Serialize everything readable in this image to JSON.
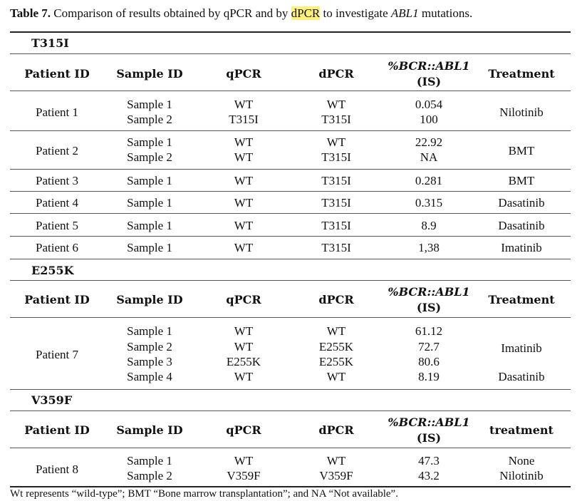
{
  "caption": {
    "label": "Table 7.",
    "text_before": " Comparison of results obtained by qPCR and by ",
    "highlight": "dPCR",
    "text_middle": " to investigate ",
    "gene": "ABL1",
    "text_after": " mutations.",
    "highlight_color": "#fff07a"
  },
  "headers": {
    "patient_id": "Patient ID",
    "sample_id": "Sample ID",
    "qpcr": "qPCR",
    "dpcr": "dPCR",
    "bcr_abl_italic": "%BCR::ABL1",
    "bcr_abl_suffix": "(IS)",
    "treatment": "Treatment",
    "treatment_lower": "treatment"
  },
  "sections": [
    {
      "title": "T315I",
      "groups": [
        {
          "patient": "Patient 1",
          "samples": [
            "Sample 1",
            "Sample 2"
          ],
          "qpcr": [
            "WT",
            "T315I"
          ],
          "dpcr": [
            "WT",
            "T315I"
          ],
          "bcr": [
            "0.054",
            "100"
          ],
          "treatment": "Nilotinib"
        },
        {
          "patient": "Patient 2",
          "samples": [
            "Sample 1",
            "Sample 2"
          ],
          "qpcr": [
            "WT",
            "WT"
          ],
          "dpcr": [
            "WT",
            "T315I"
          ],
          "bcr": [
            "22.92",
            "NA"
          ],
          "treatment": "BMT"
        },
        {
          "patient": "Patient 3",
          "samples": [
            "Sample 1"
          ],
          "qpcr": [
            "WT"
          ],
          "dpcr": [
            "T315I"
          ],
          "bcr": [
            "0.281"
          ],
          "treatment": "BMT"
        },
        {
          "patient": "Patient 4",
          "samples": [
            "Sample 1"
          ],
          "qpcr": [
            "WT"
          ],
          "dpcr": [
            "T315I"
          ],
          "bcr": [
            "0.315"
          ],
          "treatment": "Dasatinib"
        },
        {
          "patient": "Patient 5",
          "samples": [
            "Sample 1"
          ],
          "qpcr": [
            "WT"
          ],
          "dpcr": [
            "T315I"
          ],
          "bcr": [
            "8.9"
          ],
          "treatment": "Dasatinib"
        },
        {
          "patient": "Patient 6",
          "samples": [
            "Sample 1"
          ],
          "qpcr": [
            "WT"
          ],
          "dpcr": [
            "T315I"
          ],
          "bcr": [
            "1,38"
          ],
          "treatment": "Imatinib"
        }
      ]
    },
    {
      "title": "E255K",
      "groups": [
        {
          "patient": "Patient 7",
          "samples": [
            "Sample 1",
            "Sample 2",
            "Sample 3",
            "Sample 4"
          ],
          "qpcr": [
            "WT",
            "WT",
            "E255K",
            "WT"
          ],
          "dpcr": [
            "WT",
            "E255K",
            "E255K",
            "WT"
          ],
          "bcr": [
            "61.12",
            "72.7",
            "80.6",
            "8.19"
          ],
          "treatment_a": "Imatinib",
          "treatment_b": "Dasatinib"
        }
      ]
    },
    {
      "title": "V359F",
      "groups": [
        {
          "patient": "Patient 8",
          "samples": [
            "Sample 1",
            "Sample 2"
          ],
          "qpcr": [
            "WT",
            "V359F"
          ],
          "dpcr": [
            "WT",
            "V359F"
          ],
          "bcr": [
            "47.3",
            "43.2"
          ],
          "treatments": [
            "None",
            "Nilotinib"
          ]
        }
      ]
    }
  ],
  "footnote": "Wt represents “wild-type”; BMT “Bone marrow transplantation”; and NA “Not available”."
}
